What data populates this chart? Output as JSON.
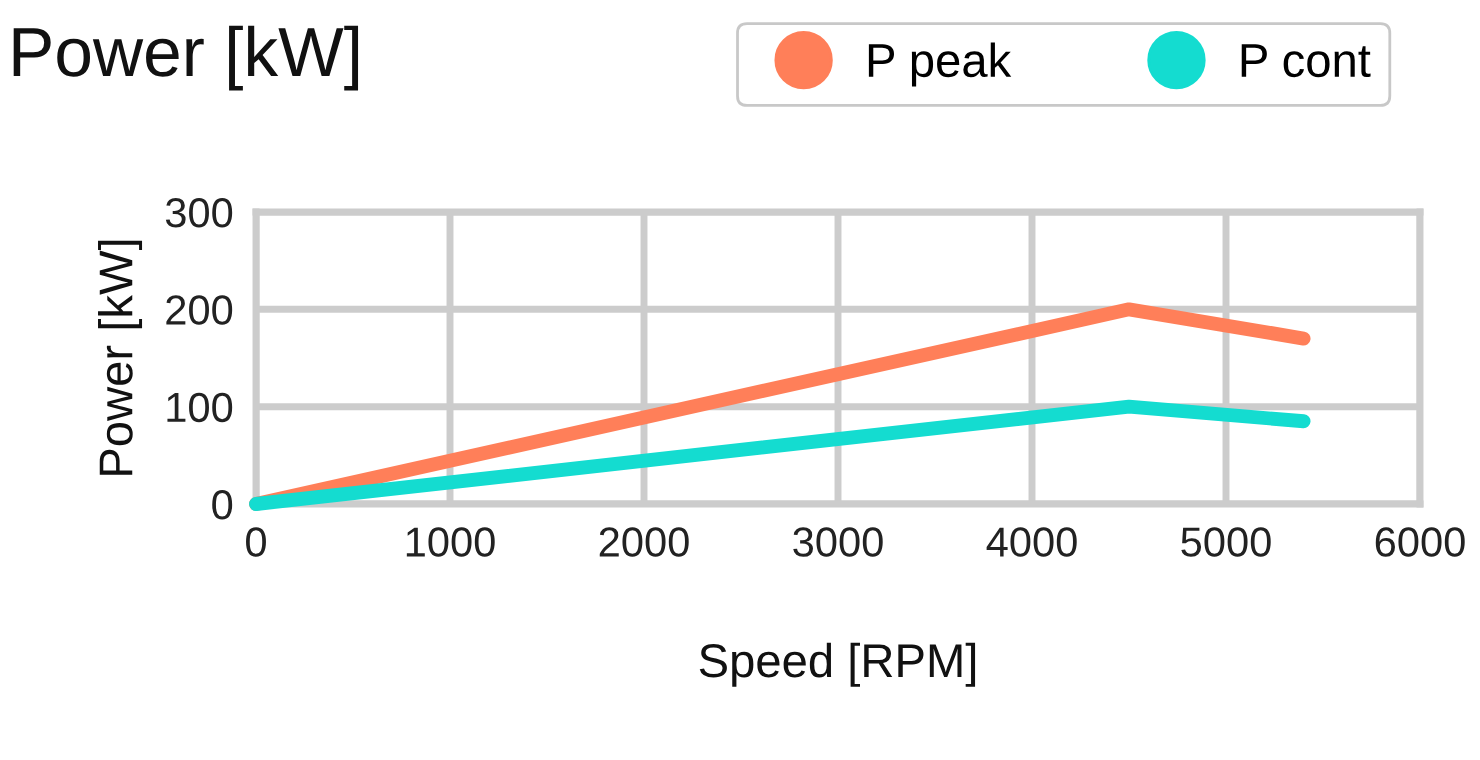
{
  "chart_data": {
    "type": "line",
    "title": "Power [kW]",
    "xlabel": "Speed [RPM]",
    "ylabel": "Power [kW]",
    "series": [
      {
        "name": "P peak",
        "color": "#ff7f59",
        "x": [
          0,
          4500,
          5400
        ],
        "values": [
          0,
          200,
          170
        ]
      },
      {
        "name": "P cont",
        "color": "#14dcd0",
        "x": [
          0,
          4500,
          5400
        ],
        "values": [
          0,
          100,
          85
        ]
      }
    ],
    "xlim": [
      0,
      6000
    ],
    "xticks": [
      0,
      1000,
      2000,
      3000,
      4000,
      5000,
      6000
    ],
    "ylim": [
      0,
      300
    ],
    "yticks": [
      0,
      100,
      200,
      300
    ],
    "grid": true,
    "legend": "top right",
    "marker": "none",
    "line_style": "solid"
  }
}
